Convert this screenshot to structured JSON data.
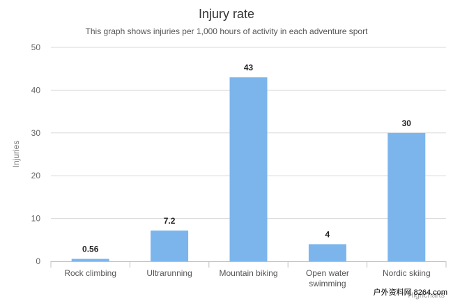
{
  "chart_data": {
    "type": "bar",
    "title": "Injury rate",
    "subtitle": "This graph shows injuries per 1,000 hours of activity in each adventure sport",
    "xlabel": "",
    "ylabel": "Injuries",
    "categories": [
      [
        "Rock climbing"
      ],
      [
        "Ultrarunning"
      ],
      [
        "Mountain biking"
      ],
      [
        "Open water",
        "swimming"
      ],
      [
        "Nordic skiing"
      ]
    ],
    "values": [
      0.56,
      7.2,
      43,
      4,
      30
    ],
    "data_labels": [
      "0.56",
      "7.2",
      "43",
      "4",
      "30"
    ],
    "ylim": [
      0,
      50
    ],
    "yticks": [
      0,
      10,
      20,
      30,
      40,
      50
    ],
    "grid": true,
    "legend": "none",
    "colors": {
      "bar": "#7cb5ec"
    }
  },
  "credits": "Highcharts",
  "watermark": "户外资料网 8264.com"
}
